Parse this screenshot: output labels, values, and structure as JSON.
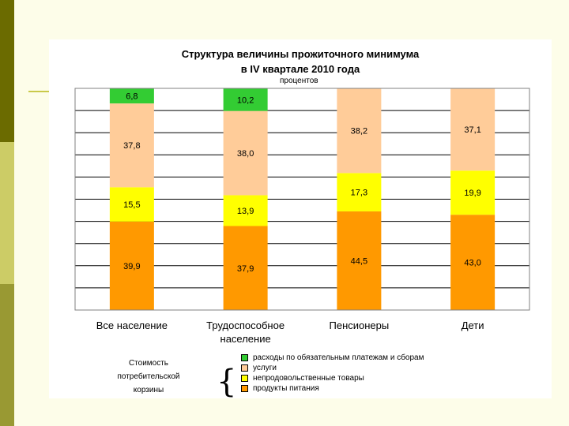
{
  "chart_data": {
    "type": "bar",
    "stacked": true,
    "title_line1": "Структура величины прожиточного минимума",
    "title_line2": "в  IV квартале 2010 года",
    "unit": "процентов",
    "categories": [
      "Все население",
      "Трудоспособное население",
      "Пенсионеры",
      "Дети"
    ],
    "series": [
      {
        "name": "продукты питания",
        "color": "#ff9900",
        "values": [
          39.9,
          37.9,
          44.5,
          43.0
        ],
        "labels": [
          "39,9",
          "37,9",
          "44,5",
          "43,0"
        ]
      },
      {
        "name": "непродовольственные товары",
        "color": "#ffff00",
        "values": [
          15.5,
          13.9,
          17.3,
          19.9
        ],
        "labels": [
          "15,5",
          "13,9",
          "17,3",
          "19,9"
        ]
      },
      {
        "name": "услуги",
        "color": "#ffcc99",
        "values": [
          37.8,
          38.0,
          38.2,
          37.1
        ],
        "labels": [
          "37,8",
          "38,0",
          "38,2",
          "37,1"
        ]
      },
      {
        "name": "расходы по обязательным платежам и сборам",
        "color": "#33cc33",
        "values": [
          6.8,
          10.2,
          0,
          0
        ],
        "labels": [
          "6,8",
          "10,2",
          "",
          ""
        ]
      }
    ],
    "ylim": [
      0,
      100
    ],
    "grid": true,
    "legend_position": "bottom",
    "legend_order": [
      3,
      2,
      1,
      0
    ],
    "legend_caption": "Стоимость потребительской корзины"
  }
}
